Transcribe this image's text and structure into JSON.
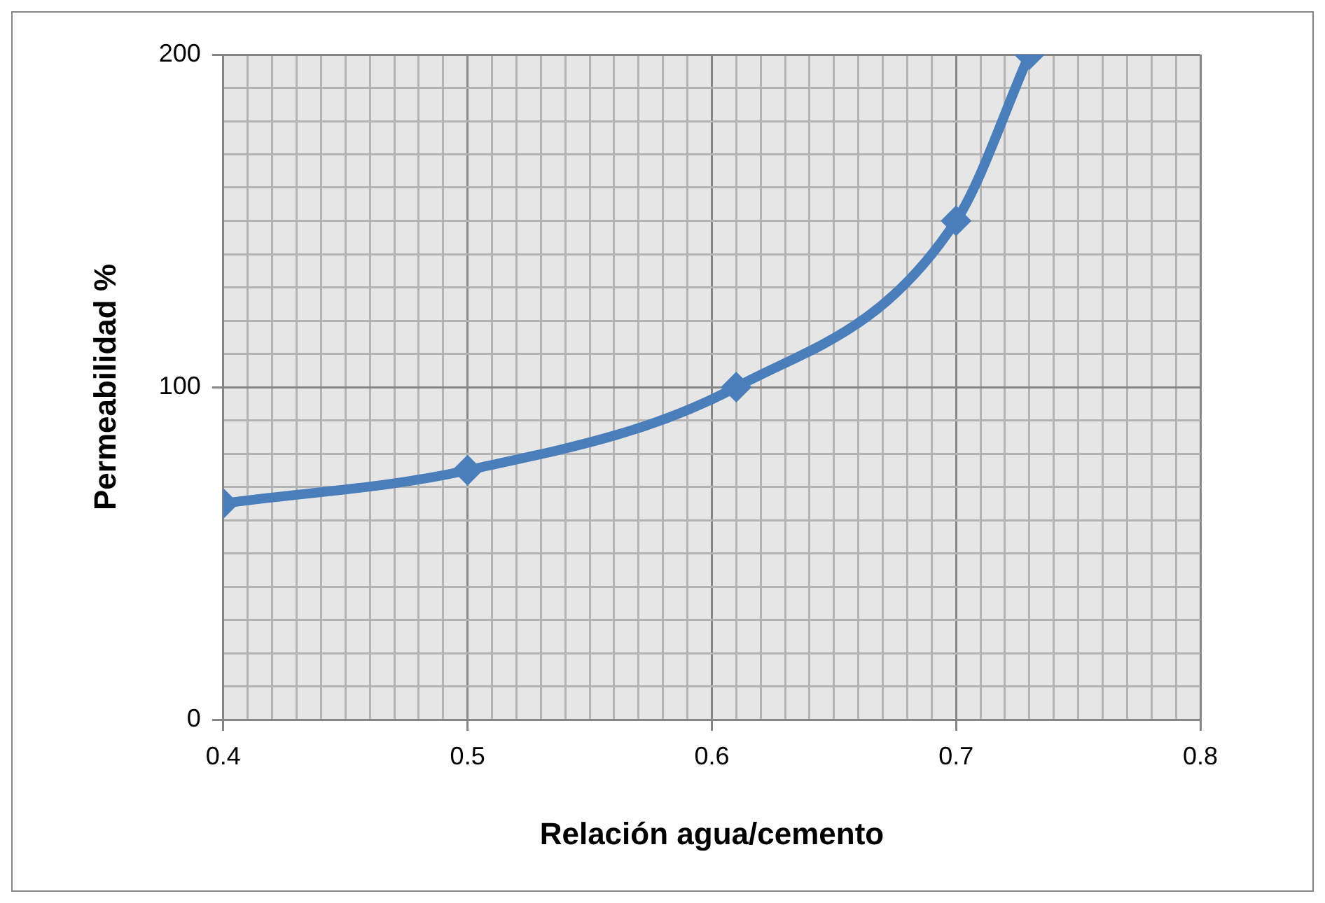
{
  "chart_data": {
    "type": "line",
    "xlabel": "Relación agua/cemento",
    "ylabel": "Permeabilidad %",
    "x": [
      0.4,
      0.5,
      0.61,
      0.7,
      0.73
    ],
    "series": [
      {
        "color": "#4a7ebb",
        "values": [
          65,
          75,
          100,
          150,
          200
        ]
      }
    ],
    "xlim": [
      0.4,
      0.8
    ],
    "xticks": [
      0.4,
      {
        "value": 0.41,
        "label": null
      },
      {
        "value": 0.42,
        "label": null
      },
      {
        "value": 0.43,
        "label": null
      },
      {
        "value": 0.44,
        "label": null
      },
      {
        "value": 0.45,
        "label": null
      },
      {
        "value": 0.46,
        "label": null
      },
      {
        "value": 0.47,
        "label": null
      },
      {
        "value": 0.48,
        "label": null
      },
      {
        "value": 0.49,
        "label": null
      },
      0.5,
      {
        "value": 0.51,
        "label": null
      },
      {
        "value": 0.52,
        "label": null
      },
      {
        "value": 0.53,
        "label": null
      },
      {
        "value": 0.54,
        "label": null
      },
      {
        "value": 0.55,
        "label": null
      },
      {
        "value": 0.56,
        "label": null
      },
      {
        "value": 0.57,
        "label": null
      },
      {
        "value": 0.58,
        "label": null
      },
      {
        "value": 0.59,
        "label": null
      },
      0.6,
      {
        "value": 0.61,
        "label": null
      },
      {
        "value": 0.62,
        "label": null
      },
      {
        "value": 0.63,
        "label": null
      },
      {
        "value": 0.64,
        "label": null
      },
      {
        "value": 0.65,
        "label": null
      },
      {
        "value": 0.66,
        "label": null
      },
      {
        "value": 0.67,
        "label": null
      },
      {
        "value": 0.68,
        "label": null
      },
      {
        "value": 0.69,
        "label": null
      },
      0.7,
      {
        "value": 0.71,
        "label": null
      },
      {
        "value": 0.72,
        "label": null
      },
      {
        "value": 0.73,
        "label": null
      },
      {
        "value": 0.74,
        "label": null
      },
      {
        "value": 0.75,
        "label": null
      },
      {
        "value": 0.76,
        "label": null
      },
      {
        "value": 0.77,
        "label": null
      },
      {
        "value": 0.78,
        "label": null
      },
      {
        "value": 0.79,
        "label": null
      },
      0.8
    ],
    "ylim": [
      0,
      200
    ],
    "yticks": [
      0,
      {
        "value": 10,
        "label": null
      },
      {
        "value": 20,
        "label": null
      },
      {
        "value": 30,
        "label": null
      },
      {
        "value": 40,
        "label": null
      },
      {
        "value": 50,
        "label": null
      },
      {
        "value": 60,
        "label": null
      },
      {
        "value": 70,
        "label": null
      },
      {
        "value": 80,
        "label": null
      },
      {
        "value": 90,
        "label": null
      },
      100,
      {
        "value": 110,
        "label": null
      },
      {
        "value": 120,
        "label": null
      },
      {
        "value": 130,
        "label": null
      },
      {
        "value": 140,
        "label": null
      },
      {
        "value": 150,
        "label": null
      },
      {
        "value": 160,
        "label": null
      },
      {
        "value": 170,
        "label": null
      },
      {
        "value": 180,
        "label": null
      },
      {
        "value": 190,
        "label": null
      },
      200
    ],
    "grid": true,
    "marker": "diamond",
    "line_style": "solid"
  }
}
